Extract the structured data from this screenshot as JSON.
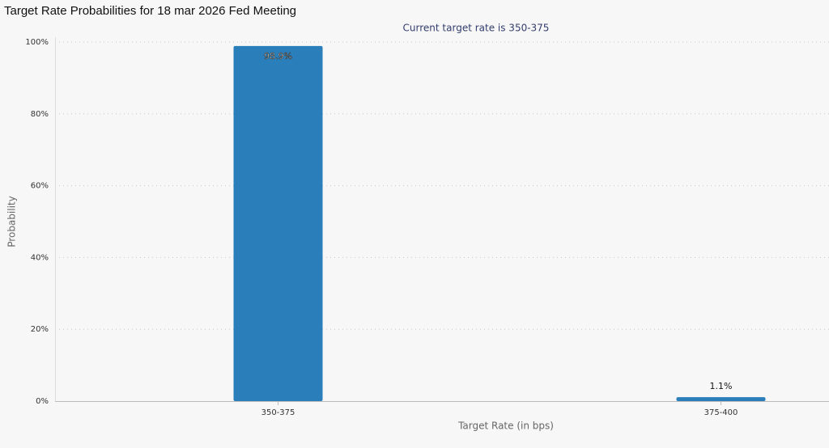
{
  "chart_data": {
    "type": "bar",
    "title": "Target Rate Probabilities for 18 mar 2026 Fed Meeting",
    "subtitle": "Current target rate is 350-375",
    "x_label": "Target Rate (in bps)",
    "y_label": "Probability",
    "categories": [
      "350-375",
      "375-400"
    ],
    "values": [
      98.9,
      1.1
    ],
    "value_labels": [
      "98.9%",
      "1.1%"
    ],
    "color": "#2a7fba",
    "ylim": [
      0,
      100
    ],
    "yticks": [
      {
        "value": 0,
        "label": "0%"
      },
      {
        "value": 20,
        "label": "20%"
      },
      {
        "value": 40,
        "label": "40%"
      },
      {
        "value": 60,
        "label": "60%"
      },
      {
        "value": 80,
        "label": "80%"
      },
      {
        "value": 100,
        "label": "100%"
      }
    ],
    "grid": true
  }
}
